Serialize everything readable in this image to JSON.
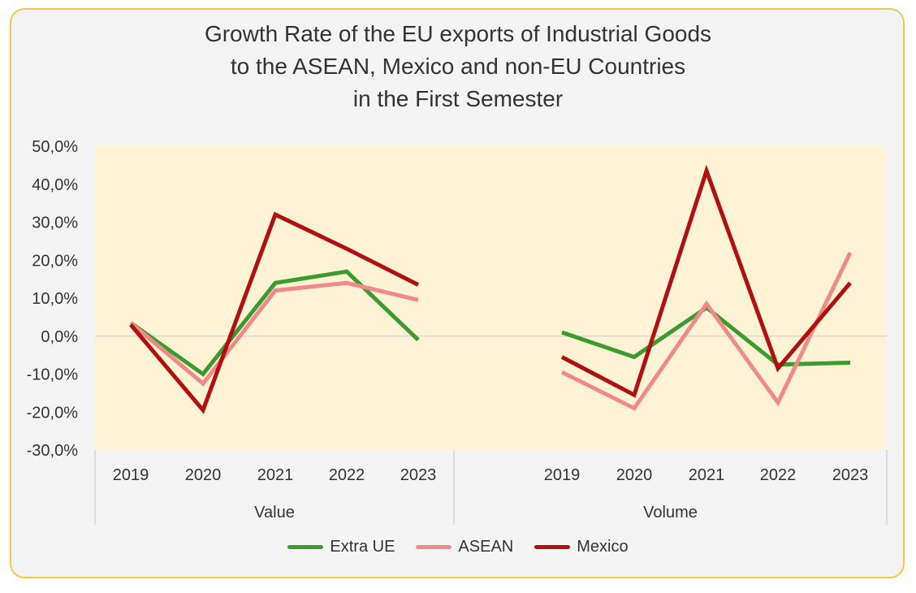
{
  "chart_data": {
    "type": "line",
    "title_lines": [
      "Growth Rate of the EU exports of Industrial Goods",
      "to the ASEAN, Mexico and non-EU Countries",
      "in the First Semester"
    ],
    "ylim": [
      -30,
      50
    ],
    "yticks": [
      {
        "value": 50,
        "label": "50,0%"
      },
      {
        "value": 40,
        "label": "40,0%"
      },
      {
        "value": 30,
        "label": "30,0%"
      },
      {
        "value": 20,
        "label": "20,0%"
      },
      {
        "value": 10,
        "label": "10,0%"
      },
      {
        "value": 0,
        "label": "0,0%"
      },
      {
        "value": -10,
        "label": "-10,0%"
      },
      {
        "value": -20,
        "label": "-20,0%"
      },
      {
        "value": -30,
        "label": "-30,0%"
      }
    ],
    "groups": [
      {
        "name": "Value",
        "categories": [
          "2019",
          "2020",
          "2021",
          "2022",
          "2023"
        ]
      },
      {
        "name": "Volume",
        "categories": [
          "2019",
          "2020",
          "2021",
          "2022",
          "2023"
        ]
      }
    ],
    "legend_position": "bottom",
    "series": [
      {
        "name": "Extra UE",
        "color": "#3a9b2e",
        "values": [
          [
            3.5,
            -10.0,
            14.0,
            17.0,
            -1.0
          ],
          [
            1.0,
            -5.5,
            7.5,
            -7.5,
            -7.0
          ]
        ]
      },
      {
        "name": "ASEAN",
        "color": "#f08a8a",
        "values": [
          [
            3.5,
            -12.5,
            12.0,
            14.0,
            9.5
          ],
          [
            -9.5,
            -19.0,
            8.5,
            -17.5,
            22.0
          ]
        ]
      },
      {
        "name": "Mexico",
        "color": "#b01010",
        "values": [
          [
            3.0,
            -19.5,
            32.0,
            23.0,
            13.5
          ],
          [
            -5.5,
            -15.5,
            43.5,
            -8.5,
            14.0
          ]
        ]
      }
    ]
  }
}
